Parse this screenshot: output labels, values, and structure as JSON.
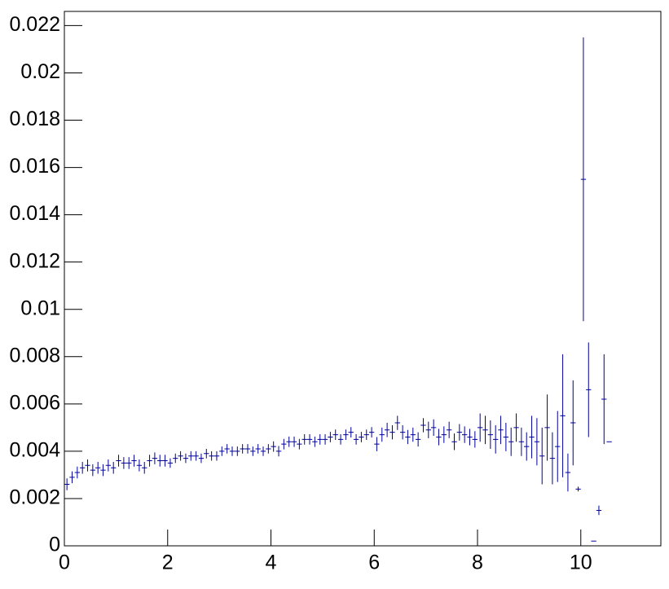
{
  "chart_data": {
    "type": "histogram",
    "bins": [
      0,
      0.1,
      0.2,
      0.3,
      0.4,
      0.5,
      0.6,
      0.7,
      0.8,
      0.9,
      1,
      1.1,
      1.2,
      1.3,
      1.4,
      1.5,
      1.6,
      1.7,
      1.8,
      1.9,
      2,
      2.1,
      2.2,
      2.3,
      2.4,
      2.5,
      2.6,
      2.7,
      2.8,
      2.9,
      3,
      3.1,
      3.2,
      3.3,
      3.4,
      3.5,
      3.6,
      3.7,
      3.8,
      3.9,
      4,
      4.1,
      4.2,
      4.3,
      4.4,
      4.5,
      4.6,
      4.7,
      4.8,
      4.9,
      5,
      5.1,
      5.2,
      5.3,
      5.4,
      5.5,
      5.6,
      5.7,
      5.8,
      5.9,
      6,
      6.1,
      6.2,
      6.3,
      6.4,
      6.5,
      6.6,
      6.7,
      6.8,
      6.9,
      7,
      7.1,
      7.2,
      7.3,
      7.4,
      7.5,
      7.6,
      7.7,
      7.8,
      7.9,
      8,
      8.1,
      8.2,
      8.3,
      8.4,
      8.5,
      8.6,
      8.7,
      8.8,
      8.9,
      9,
      9.1,
      9.2,
      9.3,
      9.4,
      9.5,
      9.6,
      9.7,
      9.8,
      9.9,
      10,
      10.1,
      10.2,
      10.3,
      10.4,
      10.5,
      10.6
    ],
    "values": [
      0.0026,
      0.0029,
      0.0031,
      0.0033,
      0.0034,
      0.0032,
      0.0033,
      0.0032,
      0.0034,
      0.0033,
      0.0036,
      0.0035,
      0.0035,
      0.0036,
      0.0034,
      0.0033,
      0.0036,
      0.0037,
      0.0036,
      0.0036,
      0.0035,
      0.0037,
      0.0038,
      0.0037,
      0.0038,
      0.0038,
      0.0037,
      0.0039,
      0.0038,
      0.0038,
      0.004,
      0.0041,
      0.004,
      0.004,
      0.0041,
      0.0041,
      0.004,
      0.0041,
      0.004,
      0.0041,
      0.0042,
      0.004,
      0.0043,
      0.0044,
      0.0044,
      0.0043,
      0.0045,
      0.0045,
      0.0044,
      0.0045,
      0.0045,
      0.0046,
      0.0047,
      0.0045,
      0.0047,
      0.0048,
      0.0045,
      0.0046,
      0.0047,
      0.0048,
      0.0043,
      0.0047,
      0.0049,
      0.0048,
      0.0052,
      0.0048,
      0.0046,
      0.0047,
      0.0045,
      0.0051,
      0.0049,
      0.005,
      0.0046,
      0.0047,
      0.0049,
      0.0044,
      0.0048,
      0.0047,
      0.0046,
      0.0045,
      0.005,
      0.0049,
      0.0047,
      0.0045,
      0.0049,
      0.0046,
      0.0044,
      0.005,
      0.0044,
      0.0042,
      0.0046,
      0.0044,
      0.0038,
      0.005,
      0.0037,
      0.0042,
      0.0055,
      0.0031,
      0.0052,
      0.0024,
      0.0155,
      0.0066,
      0.0002,
      0.0015,
      0.0062,
      0.0044
    ],
    "errors": [
      0.00025,
      0.00025,
      0.00025,
      0.00025,
      0.00025,
      0.00025,
      0.00025,
      0.00025,
      0.00025,
      0.00025,
      0.00025,
      0.00025,
      0.00025,
      0.00025,
      0.00025,
      0.00025,
      0.00025,
      0.00025,
      0.00025,
      0.00025,
      0.0002,
      0.0002,
      0.0002,
      0.0002,
      0.0002,
      0.0002,
      0.0002,
      0.0002,
      0.0002,
      0.0002,
      0.0002,
      0.0002,
      0.0002,
      0.0002,
      0.0002,
      0.0002,
      0.0002,
      0.0002,
      0.0002,
      0.0002,
      0.00022,
      0.00022,
      0.00022,
      0.00022,
      0.00022,
      0.00022,
      0.00022,
      0.00022,
      0.00022,
      0.00022,
      0.00022,
      0.00022,
      0.00022,
      0.00022,
      0.00022,
      0.00022,
      0.00022,
      0.00022,
      0.00022,
      0.00022,
      0.0003,
      0.0003,
      0.0003,
      0.0003,
      0.0003,
      0.0003,
      0.0003,
      0.0003,
      0.0003,
      0.0003,
      0.00035,
      0.00035,
      0.00035,
      0.00035,
      0.00035,
      0.00035,
      0.00035,
      0.00035,
      0.00035,
      0.00035,
      0.0006,
      0.0006,
      0.0006,
      0.0006,
      0.0006,
      0.0006,
      0.0006,
      0.0006,
      0.0006,
      0.0006,
      0.0009,
      0.001,
      0.0012,
      0.0014,
      0.0011,
      0.0015,
      0.0026,
      0.0008,
      0.0018,
      0.0001,
      0.006,
      0.002,
      0,
      0.0002,
      0.0019,
      0
    ],
    "color": "#000099",
    "xlim": [
      0,
      11.55
    ],
    "xticks": [
      0,
      2,
      4,
      6,
      8,
      10
    ],
    "ylim": [
      0,
      0.0226
    ],
    "yticks": [
      0,
      0.002,
      0.004,
      0.006,
      0.008,
      0.01,
      0.012,
      0.014,
      0.016,
      0.018,
      0.02,
      0.022
    ]
  }
}
